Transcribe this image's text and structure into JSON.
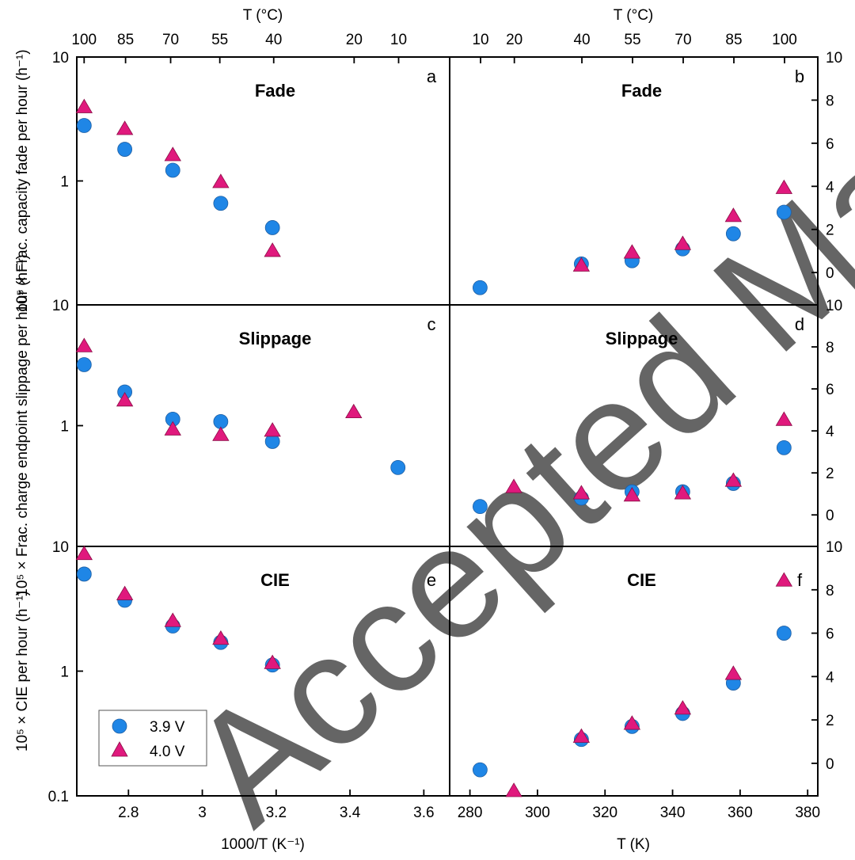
{
  "colors": {
    "series_39": "#1f86e6",
    "series_40": "#e0197d",
    "watermark": "#c0c0c0"
  },
  "axes": {
    "top_title_left": "T (°C)",
    "top_title_right": "T (°C)",
    "bottom_title_left": "1000/T (K⁻¹)",
    "bottom_title_right": "T (K)",
    "ylabel_ab": "10⁵ × Frac. capacity fade per hour (h⁻¹)",
    "ylabel_cd": "10⁵ × Frac. charge endpoint slippage per hour (h⁻¹)",
    "ylabel_ef": "10⁵ × CIE per hour (h⁻¹)",
    "top_left_ticks": [
      "100",
      "85",
      "70",
      "55",
      "40",
      "20",
      "10"
    ],
    "top_right_ticks": [
      "10",
      "20",
      "40",
      "55",
      "70",
      "85",
      "100"
    ],
    "bottom_left_ticks": [
      "2.8",
      "3",
      "3.2",
      "3.4",
      "3.6"
    ],
    "bottom_right_ticks": [
      "280",
      "300",
      "320",
      "340",
      "360",
      "380"
    ],
    "y_log_ticks_ab": [
      "10",
      "1"
    ],
    "y_log_ticks_cd": [
      "10",
      "1"
    ],
    "y_log_ticks_ef": [
      "10",
      "1",
      "0.1"
    ],
    "y_right_ticks": [
      "10",
      "8",
      "6",
      "4",
      "2",
      "0"
    ]
  },
  "legend": {
    "series_39": "3.9 V",
    "series_40": "4.0 V"
  },
  "watermark_text": "Accepted Manuscript",
  "chart_data": [
    {
      "type": "scatter",
      "panel": "a",
      "title": "Fade",
      "yscale": "log",
      "ylim": [
        0.1,
        10
      ],
      "xlim": [
        2.66,
        3.67
      ],
      "xlabel": "1000/T (K⁻¹)",
      "series": [
        {
          "name": "3.9 V",
          "x": [
            2.68,
            2.79,
            2.92,
            3.05,
            3.19
          ],
          "y": [
            2.8,
            1.8,
            1.22,
            0.66,
            0.42
          ]
        },
        {
          "name": "4.0 V",
          "x": [
            2.68,
            2.79,
            2.92,
            3.05,
            3.19
          ],
          "y": [
            3.9,
            2.6,
            1.6,
            0.97,
            0.27
          ]
        }
      ]
    },
    {
      "type": "scatter",
      "panel": "b",
      "title": "Fade",
      "ylim": [
        -1.5,
        10
      ],
      "xlim": [
        274,
        383
      ],
      "xlabel": "T (K)",
      "series": [
        {
          "name": "3.9 V",
          "x": [
            283,
            313,
            328,
            343,
            358,
            373
          ],
          "y": [
            -0.7,
            0.4,
            0.55,
            1.1,
            1.8,
            2.8
          ]
        },
        {
          "name": "4.0 V",
          "x": [
            313,
            328,
            343,
            358,
            373
          ],
          "y": [
            0.3,
            0.9,
            1.3,
            2.6,
            3.9
          ]
        }
      ]
    },
    {
      "type": "scatter",
      "panel": "c",
      "title": "Slippage",
      "yscale": "log",
      "ylim": [
        0.1,
        10
      ],
      "xlim": [
        2.66,
        3.67
      ],
      "series": [
        {
          "name": "3.9 V",
          "x": [
            2.68,
            2.79,
            2.92,
            3.05,
            3.19,
            3.53
          ],
          "y": [
            3.2,
            1.9,
            1.13,
            1.08,
            0.74,
            0.45
          ]
        },
        {
          "name": "4.0 V",
          "x": [
            2.68,
            2.79,
            2.92,
            3.05,
            3.19,
            3.41
          ],
          "y": [
            4.5,
            1.6,
            0.92,
            0.83,
            0.9,
            1.28
          ]
        }
      ]
    },
    {
      "type": "scatter",
      "panel": "d",
      "title": "Slippage",
      "ylim": [
        -1.5,
        10
      ],
      "xlim": [
        274,
        383
      ],
      "series": [
        {
          "name": "3.9 V",
          "x": [
            283,
            313,
            328,
            343,
            358,
            373
          ],
          "y": [
            0.4,
            0.8,
            1.1,
            1.1,
            1.5,
            3.2
          ]
        },
        {
          "name": "4.0 V",
          "x": [
            293,
            313,
            328,
            343,
            358,
            373
          ],
          "y": [
            1.3,
            1.0,
            0.9,
            1.0,
            1.6,
            4.5
          ]
        }
      ]
    },
    {
      "type": "scatter",
      "panel": "e",
      "title": "CIE",
      "yscale": "log",
      "ylim": [
        0.1,
        10
      ],
      "xlim": [
        2.66,
        3.67
      ],
      "series": [
        {
          "name": "3.9 V",
          "x": [
            2.68,
            2.79,
            2.92,
            3.05,
            3.19
          ],
          "y": [
            6.0,
            3.7,
            2.3,
            1.7,
            1.12
          ]
        },
        {
          "name": "4.0 V",
          "x": [
            2.68,
            2.79,
            2.92,
            3.05,
            3.19
          ],
          "y": [
            8.6,
            4.1,
            2.5,
            1.8,
            1.15
          ]
        }
      ]
    },
    {
      "type": "scatter",
      "panel": "f",
      "title": "CIE",
      "ylim": [
        -1.5,
        10
      ],
      "xlim": [
        274,
        383
      ],
      "series": [
        {
          "name": "3.9 V",
          "x": [
            283,
            313,
            328,
            343,
            358,
            373
          ],
          "y": [
            -0.3,
            1.1,
            1.7,
            2.3,
            3.7,
            6.0
          ]
        },
        {
          "name": "4.0 V",
          "x": [
            293,
            313,
            328,
            343,
            358,
            373
          ],
          "y": [
            -1.3,
            1.2,
            1.8,
            2.5,
            4.1,
            8.4
          ]
        }
      ]
    }
  ]
}
